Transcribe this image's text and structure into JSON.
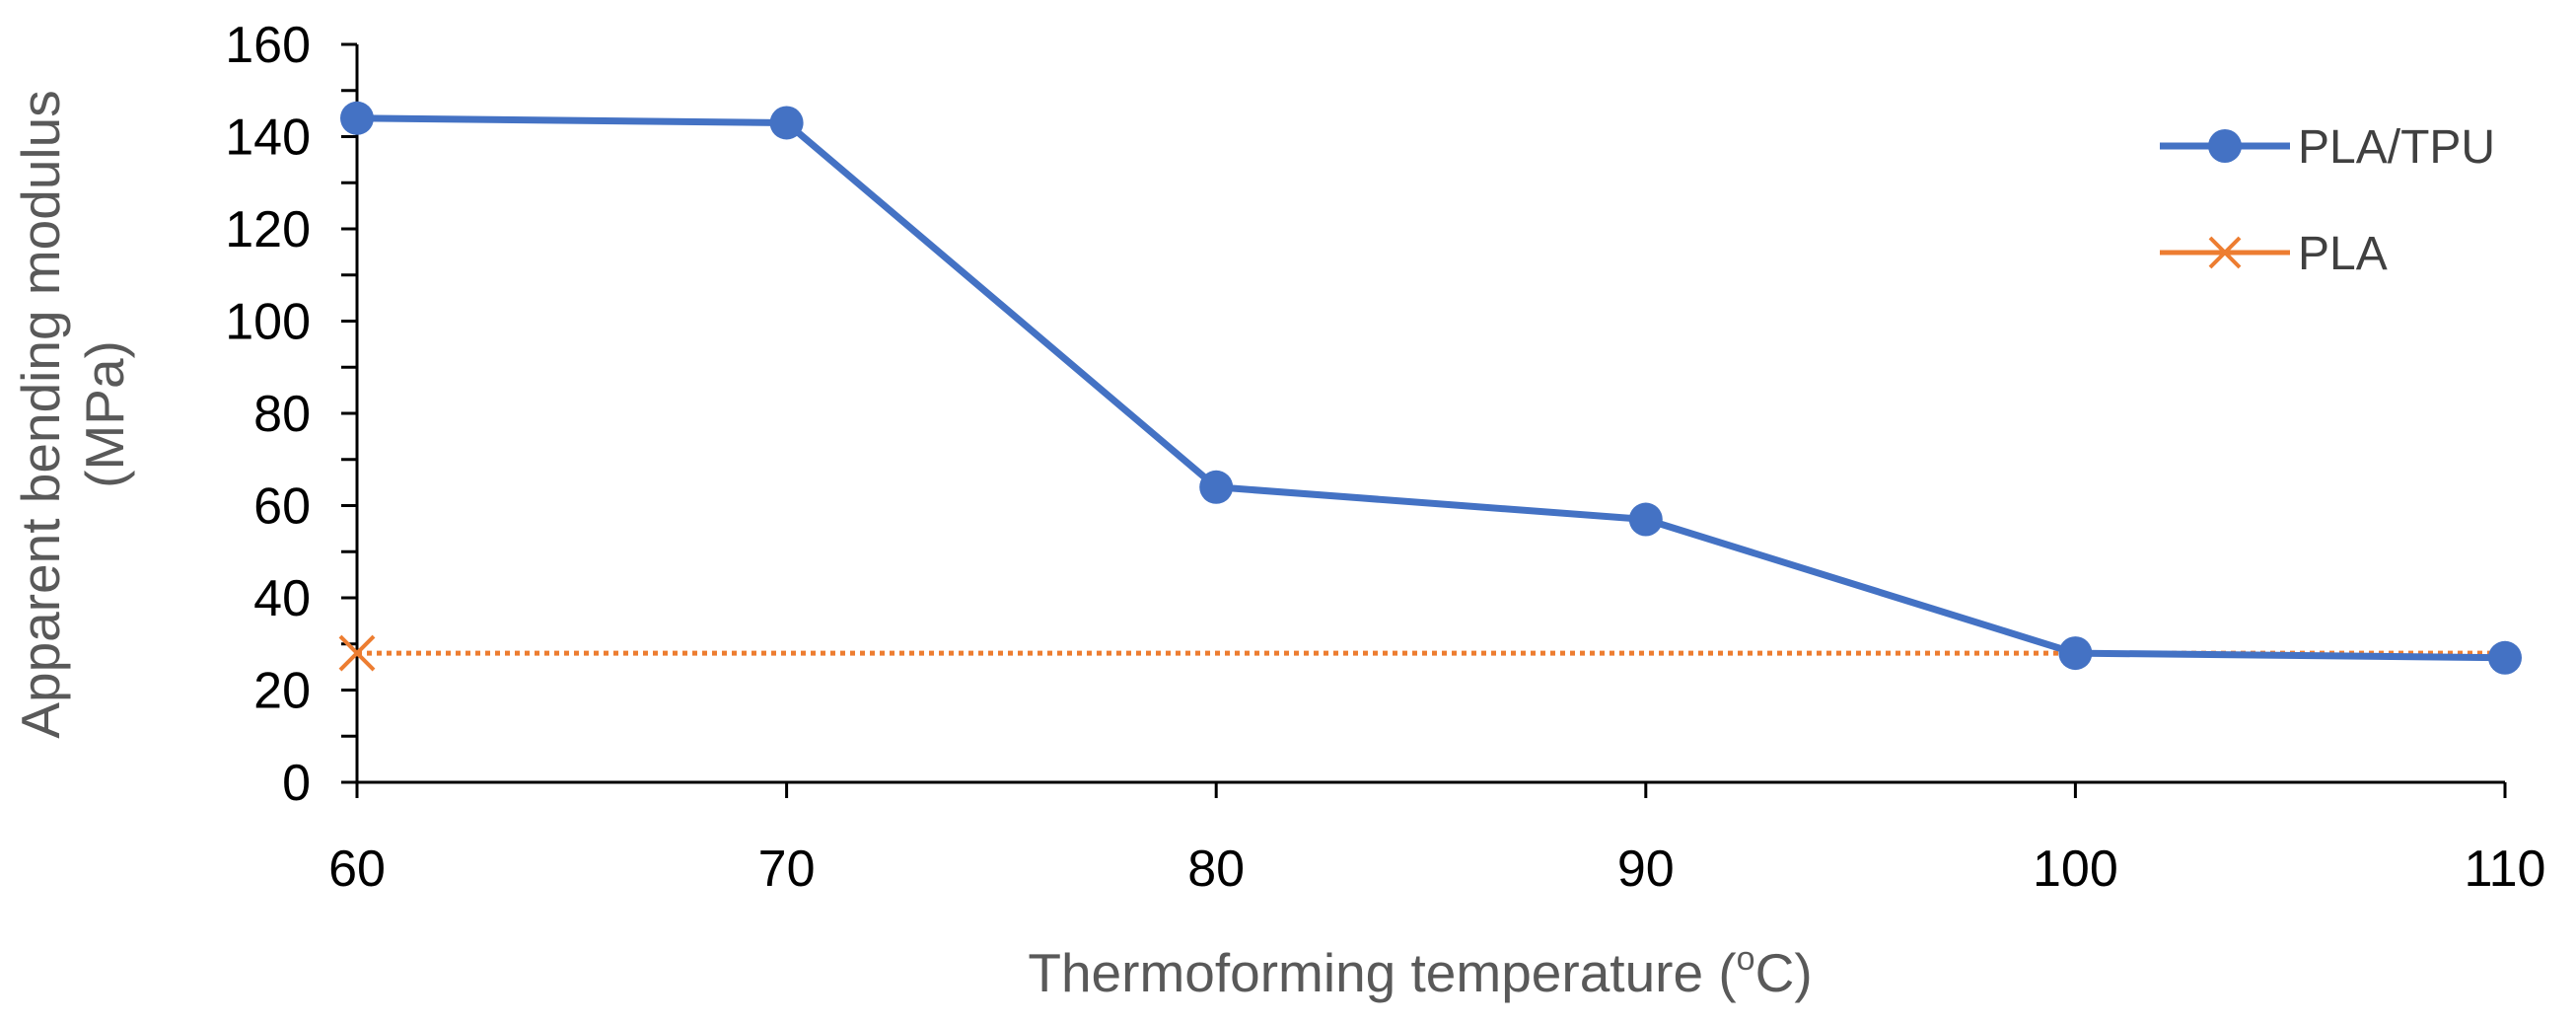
{
  "chart_data": {
    "type": "line",
    "title": "",
    "xlabel": "Thermoforming temperature (",
    "xlabel_sup": "o",
    "xlabel_suffix": "C)",
    "ylabel_line1": "Apparent bending modulus",
    "ylabel_line2": "(MPa)",
    "x_ticks": [
      "60",
      "70",
      "80",
      "90",
      "100",
      "110"
    ],
    "y_ticks": [
      "0",
      "20",
      "40",
      "60",
      "80",
      "100",
      "120",
      "140",
      "160"
    ],
    "xlim": [
      60,
      110
    ],
    "ylim": [
      0,
      160
    ],
    "grid": false,
    "legend_position": "top-right",
    "series": [
      {
        "name": "PLA/TPU",
        "color": "#4472C4",
        "marker": "circle",
        "line_style": "solid",
        "x": [
          60,
          70,
          80,
          90,
          100,
          110
        ],
        "y": [
          144,
          143,
          64,
          57,
          28,
          27
        ]
      },
      {
        "name": "PLA",
        "color": "#ED7D31",
        "marker": "x",
        "line_style": "dotted",
        "x": [
          60,
          110
        ],
        "y": [
          28,
          28
        ],
        "marker_indices": [
          0
        ]
      }
    ]
  }
}
